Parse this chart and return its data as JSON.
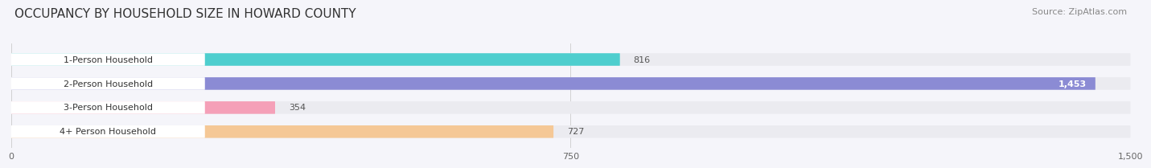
{
  "title": "OCCUPANCY BY HOUSEHOLD SIZE IN HOWARD COUNTY",
  "source": "Source: ZipAtlas.com",
  "categories": [
    "1-Person Household",
    "2-Person Household",
    "3-Person Household",
    "4+ Person Household"
  ],
  "values": [
    816,
    1453,
    354,
    727
  ],
  "bar_colors": [
    "#4ecece",
    "#8b8bd4",
    "#f5a0b8",
    "#f5c896"
  ],
  "bar_bg_color": "#ebebf0",
  "label_bg_color": "#ffffff",
  "xlim_max": 1500,
  "xticks": [
    0,
    750,
    1500
  ],
  "label_values": [
    "816",
    "1,453",
    "354",
    "727"
  ],
  "title_fontsize": 11,
  "source_fontsize": 8,
  "tick_fontsize": 8,
  "bar_label_fontsize": 8,
  "cat_label_fontsize": 8,
  "background_color": "#f5f5fa",
  "value_inside_color": "#ffffff",
  "value_outside_color": "#555555"
}
